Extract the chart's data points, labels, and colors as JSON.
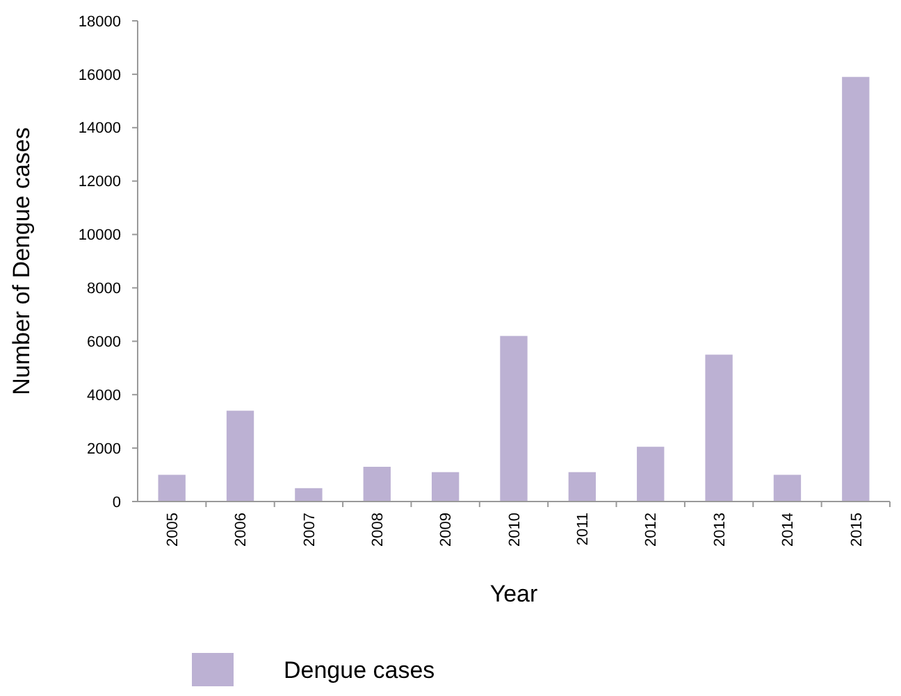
{
  "chart_data": {
    "type": "bar",
    "xlabel": "Year",
    "ylabel": "Number of Dengue cases",
    "categories": [
      "2005",
      "2006",
      "2007",
      "2008",
      "2009",
      "2010",
      "2011",
      "2012",
      "2013",
      "2014",
      "2015"
    ],
    "series": [
      {
        "name": "Dengue cases",
        "color": "#bcb1d3",
        "values": [
          1000,
          3400,
          500,
          1300,
          1100,
          6200,
          1100,
          2050,
          5500,
          1000,
          15900
        ]
      }
    ],
    "ylim": [
      0,
      18000
    ],
    "yticks": [
      0,
      2000,
      4000,
      6000,
      8000,
      10000,
      12000,
      14000,
      16000,
      18000
    ],
    "grid": false,
    "legend": "bottom"
  }
}
